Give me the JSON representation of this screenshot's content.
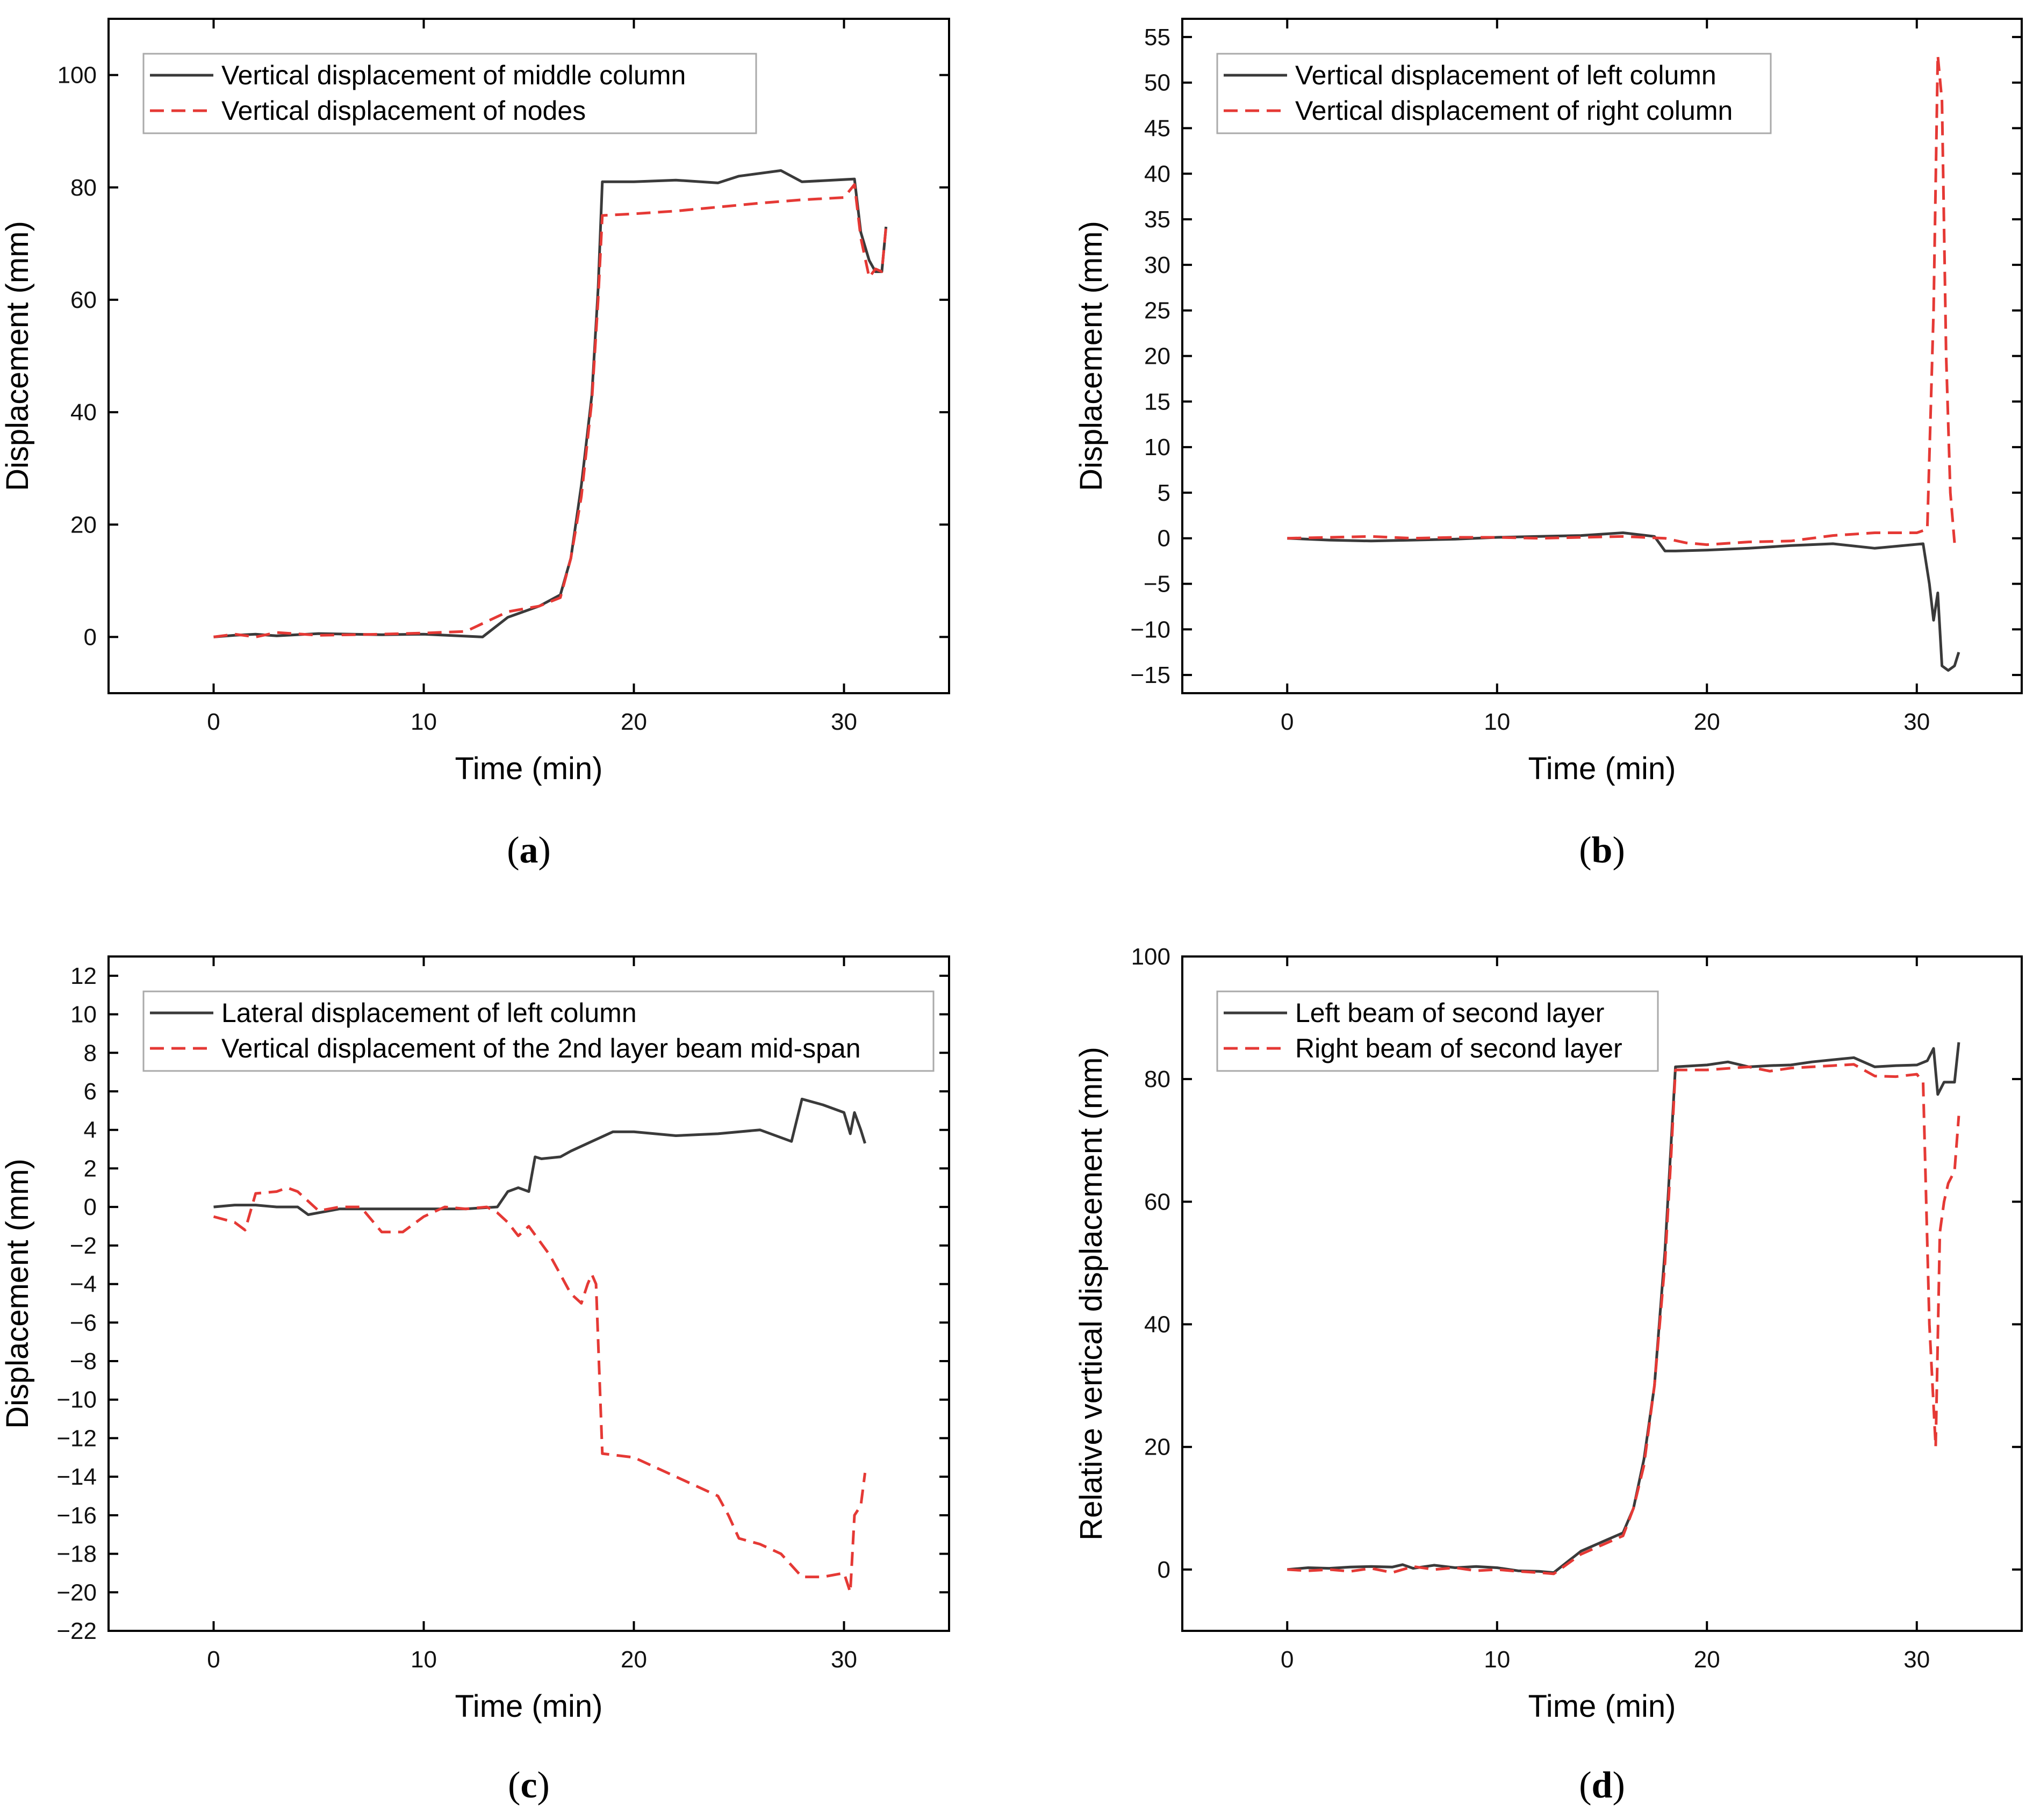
{
  "figure": {
    "panel_count": 4
  },
  "chart_data": [
    {
      "type": "line",
      "panel": "a",
      "panel_label": "a",
      "xlabel": "Time (min)",
      "ylabel": "Displacement (mm)",
      "xlim": [
        -5,
        35
      ],
      "ylim": [
        -10,
        110
      ],
      "xticks": [
        0,
        10,
        20,
        30
      ],
      "yticks": [
        0,
        20,
        40,
        60,
        80,
        100
      ],
      "legend_position": "top-left",
      "series": [
        {
          "name": "Vertical displacement of middle column",
          "color": "#3a3a3a",
          "dash": "solid",
          "x": [
            0,
            1,
            2,
            3,
            5,
            8,
            10,
            12.8,
            14,
            15.5,
            16.5,
            17,
            17.5,
            18,
            18.3,
            18.5,
            20,
            22,
            24,
            25,
            27,
            28,
            30.5,
            30.8,
            31.2,
            31.5,
            31.8,
            32
          ],
          "y": [
            0,
            0.3,
            0.5,
            0.2,
            0.6,
            0.4,
            0.5,
            0,
            3.5,
            5.5,
            7.5,
            14,
            27,
            43,
            62,
            81,
            81,
            81.3,
            80.8,
            82,
            83,
            81,
            81.5,
            72,
            67,
            65,
            65,
            73
          ]
        },
        {
          "name": "Vertical displacement of nodes",
          "color": "#e53935",
          "dash": "dashed",
          "x": [
            0,
            1,
            2,
            3,
            5,
            8,
            10,
            12,
            14,
            15.5,
            16.5,
            17,
            17.5,
            18,
            18.3,
            18.5,
            20,
            22,
            24,
            26,
            28,
            30,
            30.5,
            30.8,
            31.2,
            31.5,
            31.8,
            32
          ],
          "y": [
            0,
            0.5,
            0,
            0.8,
            0.3,
            0.5,
            0.7,
            1,
            4.5,
            5.5,
            7,
            14,
            25,
            42,
            60,
            75,
            75.3,
            75.8,
            76.5,
            77.2,
            77.8,
            78.2,
            80.5,
            71,
            64,
            65.5,
            65,
            73
          ]
        }
      ]
    },
    {
      "type": "line",
      "panel": "b",
      "panel_label": "b",
      "xlabel": "Time (min)",
      "ylabel": "Displacement (mm)",
      "xlim": [
        -5,
        35
      ],
      "ylim": [
        -17,
        57
      ],
      "xticks": [
        0,
        10,
        20,
        30
      ],
      "yticks": [
        -15,
        -10,
        -5,
        0,
        5,
        10,
        15,
        20,
        25,
        30,
        35,
        40,
        45,
        50,
        55
      ],
      "legend_position": "top-left",
      "series": [
        {
          "name": "Vertical displacement of left column",
          "color": "#3a3a3a",
          "dash": "solid",
          "x": [
            0,
            2,
            4,
            6,
            8,
            10,
            12,
            14,
            16,
            17.5,
            18,
            18.5,
            20,
            22,
            24,
            26,
            28,
            30.3,
            30.6,
            30.8,
            31.0,
            31.2,
            31.5,
            31.8,
            32
          ],
          "y": [
            0,
            -0.2,
            -0.3,
            -0.2,
            -0.1,
            0.1,
            0.2,
            0.3,
            0.6,
            0.2,
            -1.4,
            -1.4,
            -1.3,
            -1.1,
            -0.8,
            -0.6,
            -1.1,
            -0.6,
            -5,
            -9,
            -6,
            -14,
            -14.5,
            -14,
            -12.5
          ]
        },
        {
          "name": "Vertical displacement of right column",
          "color": "#e53935",
          "dash": "dashed",
          "x": [
            0,
            2,
            4,
            6,
            8,
            10,
            12,
            14,
            16,
            18,
            19,
            20,
            22,
            24,
            26,
            28,
            30,
            30.5,
            30.8,
            31.0,
            31.2,
            31.4,
            31.6,
            31.8
          ],
          "y": [
            0,
            0.1,
            0.2,
            0,
            0.1,
            0.1,
            0,
            0.1,
            0.2,
            0,
            -0.5,
            -0.7,
            -0.4,
            -0.3,
            0.3,
            0.6,
            0.6,
            1,
            25,
            53,
            48,
            20,
            5,
            -0.5
          ]
        }
      ]
    },
    {
      "type": "line",
      "panel": "c",
      "panel_label": "c",
      "xlabel": "Time (min)",
      "ylabel": "Displacement (mm)",
      "xlim": [
        -5,
        35
      ],
      "ylim": [
        -22,
        13
      ],
      "xticks": [
        0,
        10,
        20,
        30
      ],
      "yticks": [
        -22,
        -20,
        -18,
        -16,
        -14,
        -12,
        -10,
        -8,
        -6,
        -4,
        -2,
        0,
        2,
        4,
        6,
        8,
        10,
        12
      ],
      "legend_position": "top-left",
      "series": [
        {
          "name": "Lateral displacement of left column",
          "color": "#3a3a3a",
          "dash": "solid",
          "x": [
            0,
            1,
            2,
            3,
            4,
            4.5,
            6,
            8,
            10,
            12,
            13.5,
            14,
            14.5,
            15,
            15.3,
            15.6,
            16.5,
            17,
            18,
            19,
            20,
            22,
            24,
            26,
            27.5,
            28,
            29,
            30,
            30.3,
            30.5,
            30.8,
            31
          ],
          "y": [
            0,
            0.1,
            0.1,
            0,
            0,
            -0.4,
            -0.1,
            -0.1,
            -0.1,
            -0.1,
            0,
            0.8,
            1,
            0.8,
            2.6,
            2.5,
            2.6,
            2.9,
            3.4,
            3.9,
            3.9,
            3.7,
            3.8,
            4,
            3.4,
            5.6,
            5.3,
            4.9,
            3.8,
            4.9,
            4,
            3.3
          ]
        },
        {
          "name": "Vertical displacement of the 2nd layer beam mid-span",
          "color": "#e53935",
          "dash": "dashed",
          "x": [
            0,
            1,
            1.5,
            2,
            3,
            3.5,
            4,
            5,
            6,
            7,
            8,
            9,
            10,
            11,
            12,
            13,
            13.5,
            14,
            14.5,
            15,
            16,
            16.5,
            17,
            17.5,
            17.8,
            18,
            18.2,
            18.5,
            20,
            22,
            24,
            24.5,
            25,
            26,
            27,
            28,
            29,
            30,
            30.3,
            30.5,
            30.8,
            31
          ],
          "y": [
            -0.5,
            -0.8,
            -1.2,
            0.7,
            0.8,
            1,
            0.8,
            -0.2,
            0,
            0,
            -1.3,
            -1.3,
            -0.5,
            0,
            -0.1,
            0,
            -0.3,
            -0.8,
            -1.5,
            -1,
            -2.5,
            -3.5,
            -4.5,
            -5,
            -4,
            -3.5,
            -4,
            -12.8,
            -13,
            -14,
            -15,
            -16,
            -17.2,
            -17.5,
            -18,
            -19.2,
            -19.2,
            -19,
            -20,
            -16,
            -15.5,
            -13.8
          ]
        }
      ]
    },
    {
      "type": "line",
      "panel": "d",
      "panel_label": "d",
      "xlabel": "Time (min)",
      "ylabel": "Relative vertical displacement (mm)",
      "xlim": [
        -5,
        35
      ],
      "ylim": [
        -10,
        100
      ],
      "xticks": [
        0,
        10,
        20,
        30
      ],
      "yticks": [
        0,
        20,
        40,
        60,
        80,
        100
      ],
      "legend_position": "top-left",
      "series": [
        {
          "name": "Left beam of second layer",
          "color": "#3a3a3a",
          "dash": "solid",
          "x": [
            0,
            1,
            2,
            3,
            4,
            5,
            5.5,
            6,
            7,
            8,
            9,
            10,
            11,
            12,
            12.7,
            14,
            15,
            16,
            16.5,
            17,
            17.5,
            18,
            18.3,
            18.5,
            20,
            21,
            22,
            23,
            24,
            25,
            27,
            28,
            29,
            30,
            30.5,
            30.8,
            31.0,
            31.3,
            31.6,
            31.8,
            32
          ],
          "y": [
            0,
            0.3,
            0.2,
            0.4,
            0.5,
            0.4,
            0.8,
            0.2,
            0.7,
            0.3,
            0.5,
            0.3,
            -0.2,
            -0.3,
            -0.5,
            3,
            4.5,
            6,
            10,
            18,
            30,
            52,
            70,
            82,
            82.3,
            82.8,
            82,
            82.2,
            82.3,
            82.8,
            83.5,
            82,
            82.2,
            82.3,
            83,
            85,
            77.5,
            79.5,
            79.5,
            79.5,
            86
          ]
        },
        {
          "name": "Right beam of second layer",
          "color": "#e53935",
          "dash": "dashed",
          "x": [
            0,
            1,
            2,
            3,
            4,
            5,
            6,
            7,
            8,
            9,
            10,
            11,
            12,
            12.7,
            14,
            15,
            16,
            16.5,
            17,
            17.5,
            18,
            18.3,
            18.5,
            20,
            22,
            23,
            24,
            26,
            27,
            28,
            29,
            30,
            30.3,
            30.6,
            30.9,
            31.1,
            31.3,
            31.5,
            31.8,
            32
          ],
          "y": [
            0,
            -0.2,
            0,
            -0.3,
            0.2,
            -0.5,
            0.5,
            0,
            0.3,
            -0.2,
            0,
            -0.3,
            -0.5,
            -0.7,
            2.5,
            4,
            5.5,
            10,
            17,
            30,
            50,
            68,
            81.5,
            81.5,
            82,
            81.3,
            81.8,
            82.2,
            82.4,
            80.5,
            80.4,
            80.8,
            79.5,
            40,
            20,
            55,
            60,
            63,
            65,
            74
          ]
        }
      ]
    }
  ]
}
